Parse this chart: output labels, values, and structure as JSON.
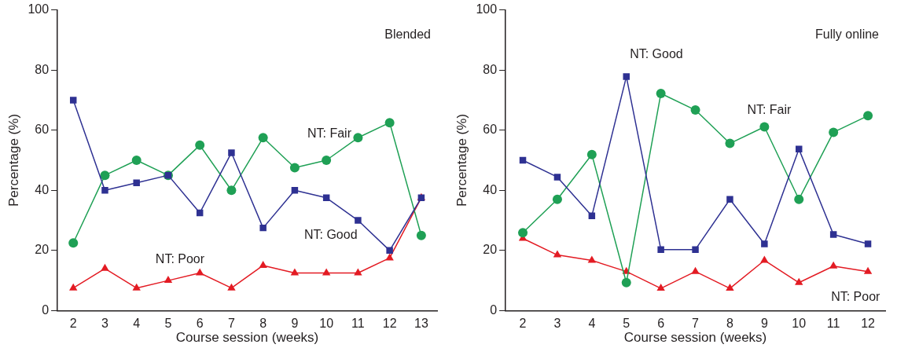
{
  "chart_data": [
    {
      "type": "line",
      "annotations": [
        "Blended"
      ],
      "xlabel": "Course session (weeks)",
      "ylabel": "Percentage (%)",
      "categories": [
        "2",
        "3",
        "4",
        "5",
        "6",
        "7",
        "8",
        "9",
        "10",
        "11",
        "12",
        "13"
      ],
      "ylim": [
        0,
        100
      ],
      "yticks": [
        0,
        20,
        40,
        60,
        80,
        100
      ],
      "grid": false,
      "legend": false,
      "series": [
        {
          "name": "NT: Good",
          "color": "#2e3192",
          "marker": "square",
          "values": [
            70,
            40,
            42.5,
            45,
            32.5,
            52.5,
            27.5,
            40,
            37.5,
            30,
            20,
            37.5
          ]
        },
        {
          "name": "NT: Fair",
          "color": "#1fa055",
          "marker": "circle",
          "values": [
            22.5,
            45,
            50,
            45,
            55,
            40,
            57.5,
            47.5,
            50,
            57.5,
            62.5,
            25
          ]
        },
        {
          "name": "NT: Poor",
          "color": "#e31b23",
          "marker": "triangle",
          "values": [
            7.5,
            14,
            7.5,
            10,
            12.5,
            7.5,
            15,
            12.5,
            12.5,
            12.5,
            17.5,
            37.5
          ]
        }
      ]
    },
    {
      "type": "line",
      "annotations": [
        "Fully online"
      ],
      "xlabel": "Course session (weeks)",
      "ylabel": "Percentage (%)",
      "categories": [
        "2",
        "3",
        "4",
        "5",
        "6",
        "7",
        "8",
        "9",
        "10",
        "11",
        "12"
      ],
      "ylim": [
        0,
        100
      ],
      "yticks": [
        0,
        20,
        40,
        60,
        80,
        100
      ],
      "grid": false,
      "legend": false,
      "series": [
        {
          "name": "NT: Good",
          "color": "#2e3192",
          "marker": "square",
          "values": [
            50,
            44.4,
            31.5,
            77.8,
            20.3,
            20.3,
            37,
            22.2,
            53.7,
            25.3,
            22.2
          ]
        },
        {
          "name": "NT: Fair",
          "color": "#1fa055",
          "marker": "circle",
          "values": [
            25.9,
            37,
            51.9,
            9.3,
            72.2,
            66.7,
            55.6,
            61.1,
            37,
            59.3,
            64.8
          ]
        },
        {
          "name": "NT: Poor",
          "color": "#e31b23",
          "marker": "triangle",
          "values": [
            24,
            18.5,
            16.7,
            13,
            7.4,
            13,
            7.4,
            16.7,
            9.3,
            14.8,
            13
          ]
        }
      ]
    }
  ]
}
